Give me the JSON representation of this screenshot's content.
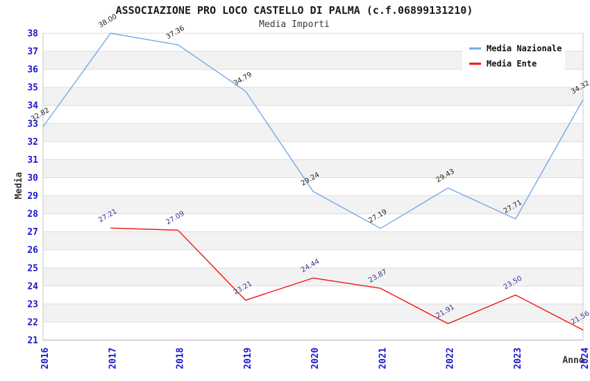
{
  "chart_data": {
    "type": "line",
    "title": "ASSOCIAZIONE PRO LOCO CASTELLO DI PALMA (c.f.06899131210)",
    "subtitle": "Media Importi",
    "xlabel": "Anno",
    "ylabel": "Media",
    "ylim": [
      21,
      38
    ],
    "ytick_step": 1,
    "grid": "horizontal-bands",
    "legend_position": "top-right",
    "categories": [
      "2016",
      "2017",
      "2018",
      "2019",
      "2020",
      "2021",
      "2022",
      "2023",
      "2024"
    ],
    "series": [
      {
        "name": "Media Nazionale",
        "color": "#74a9e4",
        "label_color": "#222222",
        "values": [
          32.82,
          38.0,
          37.36,
          34.79,
          29.24,
          27.19,
          29.43,
          27.71,
          34.32
        ]
      },
      {
        "name": "Media Ente",
        "color": "#ee1111",
        "label_color": "#333399",
        "values": [
          null,
          27.21,
          27.09,
          23.21,
          24.44,
          23.87,
          21.91,
          23.5,
          21.56
        ]
      }
    ],
    "colors": {
      "tick_label": "#1717cc",
      "band_gray": "#f2f2f2",
      "gridline": "#dcdcdc",
      "axis_line": "#a8a8a8",
      "plot_border": "#c8c8c8",
      "legend_background": "#ffffff"
    }
  }
}
